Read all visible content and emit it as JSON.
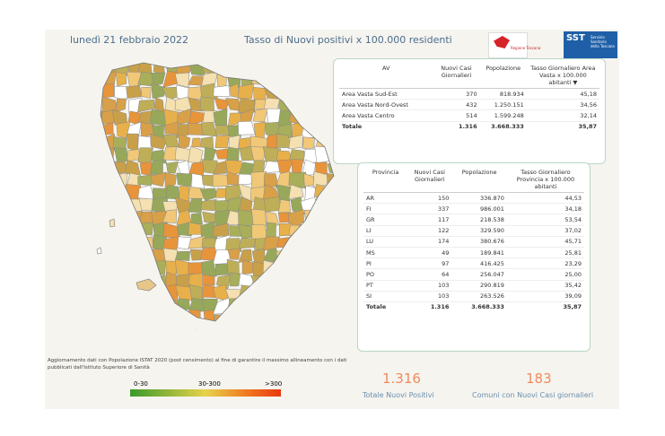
{
  "header": {
    "date": "lunedì 21 febbraio 2022",
    "title": "Tasso di Nuovi positivi x 100.000 residenti"
  },
  "logos": {
    "regione": "Regione Toscana",
    "sst_short": "SST",
    "sst_full": "Servizio Sanitario della Toscana"
  },
  "av_table": {
    "headers": [
      "AV",
      "Nuovi Casi Giornalieri",
      "Popolazione",
      "Tasso Giornaliero Area Vasta x 100.000 abitanti"
    ],
    "rows": [
      [
        "Area Vasta Sud-Est",
        "370",
        "818.934",
        "45,18"
      ],
      [
        "Area Vasta Nord-Ovest",
        "432",
        "1.250.151",
        "34,56"
      ],
      [
        "Area Vasta Centro",
        "514",
        "1.599.248",
        "32,14"
      ]
    ],
    "total": [
      "Totale",
      "1.316",
      "3.668.333",
      "35,87"
    ]
  },
  "prov_table": {
    "headers": [
      "Provincia",
      "Nuovi Casi Giornalieri",
      "Popolazione",
      "Tasso Giornaliero Provincia x 100.000 abitanti"
    ],
    "rows": [
      [
        "AR",
        "150",
        "336.870",
        "44,53"
      ],
      [
        "FI",
        "337",
        "986.001",
        "34,18"
      ],
      [
        "GR",
        "117",
        "218.538",
        "53,54"
      ],
      [
        "LI",
        "122",
        "329.590",
        "37,02"
      ],
      [
        "LU",
        "174",
        "380.676",
        "45,71"
      ],
      [
        "MS",
        "49",
        "189.841",
        "25,81"
      ],
      [
        "PI",
        "97",
        "416.425",
        "23,29"
      ],
      [
        "PO",
        "64",
        "256.047",
        "25,00"
      ],
      [
        "PT",
        "103",
        "290.819",
        "35,42"
      ],
      [
        "SI",
        "103",
        "263.526",
        "39,09"
      ]
    ],
    "total": [
      "Totale",
      "1.316",
      "3.668.333",
      "35,87"
    ]
  },
  "note": "Aggiornamento dati con Popolazione ISTAT 2020 (post censimento) al fine di garantire il massimo allineamento con i dati pubblicati dall'Istituto Superiore di Sanità",
  "legend": {
    "low": "0-30",
    "mid": "30-300",
    "high": ">300",
    "colors": {
      "low": "#3a9a2a",
      "mid": "#d8b13a",
      "high": "#e84a10"
    }
  },
  "kpis": {
    "total_value": "1.316",
    "total_label": "Totale Nuovi Positivi",
    "comuni_value": "183",
    "comuni_label": "Comuni con Nuovi Casi giornalieri"
  },
  "map_colors": [
    "#e8b04a",
    "#d8a048",
    "#c9a04a",
    "#f0c878",
    "#a8ae5a",
    "#98a85a",
    "#f4e0b0",
    "#ffffff",
    "#e8943a",
    "#bfae58"
  ]
}
